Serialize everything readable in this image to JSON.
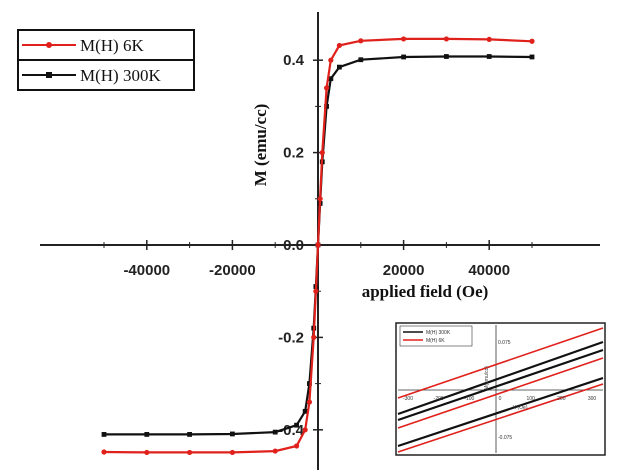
{
  "chart_data": {
    "type": "line",
    "xlabel": "applied field (Oe)",
    "ylabel": "M (emu/cc)",
    "xlim": [
      -50000,
      50000
    ],
    "ylim": [
      -0.45,
      0.45
    ],
    "x_ticks": [
      -40000,
      -20000,
      0,
      20000,
      40000
    ],
    "x_tick_labels": [
      "-40000",
      "-20000",
      "0",
      "20000",
      "40000"
    ],
    "y_ticks": [
      -0.4,
      -0.2,
      0.0,
      0.2,
      0.4
    ],
    "y_tick_labels": [
      "-0.4",
      "-0.2",
      "0.0",
      "0.2",
      "0.4"
    ],
    "legend_position": "top-left",
    "series": [
      {
        "name": "M(H) 6K",
        "color": "#e0201b",
        "marker": "circle",
        "x": [
          -50000,
          -40000,
          -30000,
          -20000,
          -10000,
          -5000,
          -3000,
          -2000,
          -1000,
          -500,
          0,
          500,
          1000,
          2000,
          3000,
          5000,
          10000,
          20000,
          30000,
          40000,
          50000
        ],
        "y": [
          -0.448,
          -0.449,
          -0.449,
          -0.449,
          -0.446,
          -0.435,
          -0.4,
          -0.34,
          -0.2,
          -0.1,
          0.0,
          0.1,
          0.2,
          0.34,
          0.4,
          0.432,
          0.442,
          0.446,
          0.446,
          0.445,
          0.441
        ]
      },
      {
        "name": "M(H) 300K",
        "color": "#111111",
        "marker": "square",
        "x": [
          -50000,
          -40000,
          -30000,
          -20000,
          -10000,
          -5000,
          -3000,
          -2000,
          -1000,
          -500,
          0,
          500,
          1000,
          2000,
          3000,
          5000,
          10000,
          20000,
          30000,
          40000,
          50000
        ],
        "y": [
          -0.41,
          -0.41,
          -0.41,
          -0.409,
          -0.405,
          -0.39,
          -0.36,
          -0.3,
          -0.18,
          -0.09,
          0.0,
          0.09,
          0.18,
          0.3,
          0.36,
          0.385,
          0.401,
          0.407,
          0.408,
          0.408,
          0.407
        ]
      }
    ],
    "inset": {
      "type": "line",
      "xlabel": "H (Oe)",
      "ylabel": "M(emu/cc)",
      "xlim": [
        -400,
        400
      ],
      "ylim": [
        -0.1,
        0.1
      ],
      "x_tick_labels": [
        "-300",
        "-200",
        "-100",
        "0",
        "100",
        "200",
        "300"
      ],
      "y_tick_labels": [
        "0.075",
        "-0.075"
      ],
      "legend_position": "top-left",
      "series": [
        {
          "name": "M(H) 300K",
          "color": "#111111"
        },
        {
          "name": "M(H) 6K",
          "color": "#e0201b"
        }
      ]
    }
  }
}
